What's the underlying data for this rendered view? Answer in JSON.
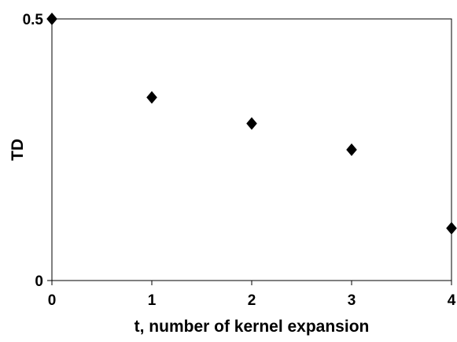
{
  "chart_data": {
    "type": "scatter",
    "title": "",
    "xlabel": "t, number of kernel expansion",
    "ylabel": "TD",
    "xlim": [
      0,
      4
    ],
    "ylim": [
      0,
      0.5
    ],
    "x_ticks": [
      0,
      1,
      2,
      3,
      4
    ],
    "x_tick_labels": [
      "0",
      "1",
      "2",
      "3",
      "4"
    ],
    "y_ticks": [
      0,
      0.5
    ],
    "y_tick_labels": [
      "0",
      "0.5"
    ],
    "grid": false,
    "legend": "none",
    "marker": "diamond",
    "colors": {
      "marker": "#000000",
      "axis": "#000000",
      "background": "#ffffff"
    },
    "series": [
      {
        "points": [
          {
            "x": 0,
            "y": 0.5
          },
          {
            "x": 1,
            "y": 0.35
          },
          {
            "x": 2,
            "y": 0.3
          },
          {
            "x": 3,
            "y": 0.25
          },
          {
            "x": 4,
            "y": 0.1
          }
        ]
      }
    ]
  }
}
